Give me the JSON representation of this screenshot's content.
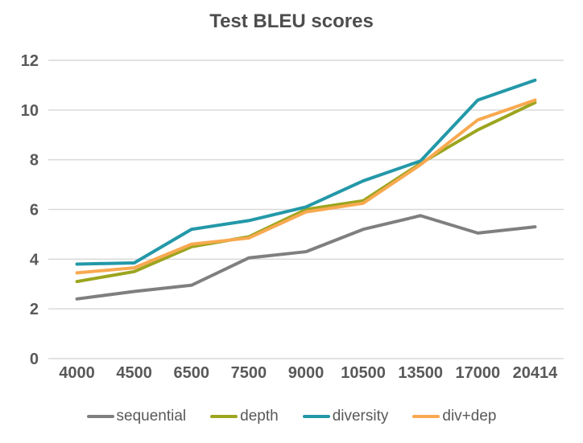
{
  "chart_data": {
    "type": "line",
    "title": "Test BLEU scores",
    "categories": [
      "4000",
      "4500",
      "6500",
      "7500",
      "9000",
      "10500",
      "13500",
      "17000",
      "20414"
    ],
    "series": [
      {
        "name": "sequential",
        "color": "#7F7F7F",
        "values": [
          2.4,
          2.7,
          2.95,
          4.05,
          4.3,
          5.2,
          5.75,
          5.05,
          5.3
        ]
      },
      {
        "name": "depth",
        "color": "#9CA51E",
        "values": [
          3.1,
          3.5,
          4.5,
          4.9,
          6.0,
          6.35,
          7.85,
          9.2,
          10.3
        ]
      },
      {
        "name": "diversity",
        "color": "#2398A8",
        "values": [
          3.8,
          3.85,
          5.2,
          5.55,
          6.1,
          7.15,
          7.95,
          10.4,
          11.2
        ]
      },
      {
        "name": "div+dep",
        "color": "#F8A950",
        "values": [
          3.45,
          3.65,
          4.6,
          4.85,
          5.9,
          6.25,
          7.8,
          9.6,
          10.4
        ]
      }
    ],
    "ylim": [
      0,
      12
    ],
    "yticks": [
      0,
      2,
      4,
      6,
      8,
      10,
      12
    ],
    "grid": true,
    "legend_position": "bottom",
    "style": {
      "gridline_color": "#D9D9D9",
      "axis_text_color": "#595959",
      "title_color": "#4D4D4D",
      "line_width": 4
    }
  }
}
